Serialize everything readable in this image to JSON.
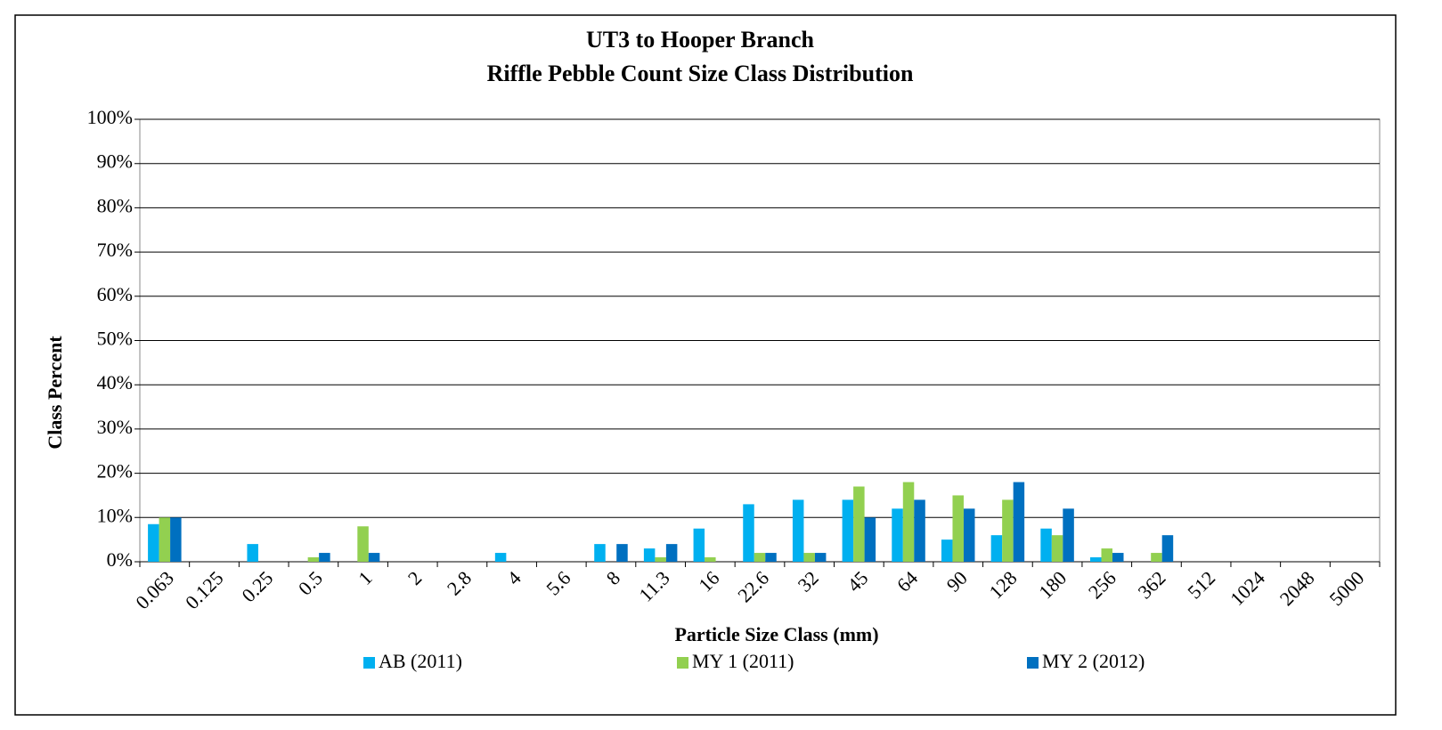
{
  "chart_data": {
    "type": "bar",
    "title": "UT3 to Hooper Branch",
    "subtitle": "Riffle Pebble Count Size Class Distribution",
    "x_label": "Particle Size Class (mm)",
    "y_label": "Class Percent",
    "categories": [
      "0.063",
      "0.125",
      "0.25",
      "0.5",
      "1",
      "2",
      "2.8",
      "4",
      "5.6",
      "8",
      "11.3",
      "16",
      "22.6",
      "32",
      "45",
      "64",
      "90",
      "128",
      "180",
      "256",
      "362",
      "512",
      "1024",
      "2048",
      "5000"
    ],
    "series": [
      {
        "name": "AB (2011)",
        "color": "#00b0f0",
        "values": [
          8.5,
          0,
          4,
          0,
          0,
          0,
          0,
          2,
          0,
          4,
          3,
          7.5,
          13,
          14,
          14,
          12,
          5,
          6,
          7.5,
          1,
          0,
          0,
          0,
          0,
          0
        ]
      },
      {
        "name": "MY 1 (2011)",
        "color": "#92d050",
        "values": [
          10,
          0,
          0,
          1,
          8,
          0,
          0,
          0,
          0,
          0,
          1,
          1,
          2,
          2,
          17,
          18,
          15,
          14,
          6,
          3,
          2,
          0,
          0,
          0,
          0
        ]
      },
      {
        "name": "MY 2 (2012)",
        "color": "#0070c0",
        "values": [
          10,
          0,
          0,
          2,
          2,
          0,
          0,
          0,
          0,
          4,
          4,
          0,
          2,
          2,
          10,
          14,
          12,
          18,
          12,
          2,
          6,
          0,
          0,
          0,
          0
        ]
      }
    ],
    "ylim": [
      0,
      100
    ],
    "yticks": [
      {
        "value": 0,
        "label": "0%"
      },
      {
        "value": 10,
        "label": "10%"
      },
      {
        "value": 20,
        "label": "20%"
      },
      {
        "value": 30,
        "label": "30%"
      },
      {
        "value": 40,
        "label": "40%"
      },
      {
        "value": 50,
        "label": "50%"
      },
      {
        "value": 60,
        "label": "60%"
      },
      {
        "value": 70,
        "label": "70%"
      },
      {
        "value": 80,
        "label": "80%"
      },
      {
        "value": 90,
        "label": "90%"
      },
      {
        "value": 100,
        "label": "100%"
      }
    ],
    "grid": true,
    "legend": "bottom"
  }
}
